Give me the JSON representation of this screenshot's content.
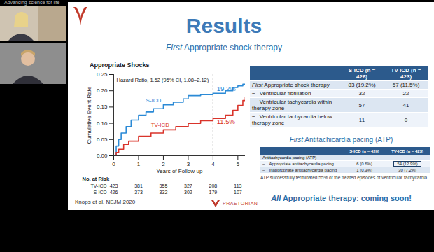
{
  "chart_data": {
    "type": "line",
    "title": "Appropriate Shocks",
    "subtitle": "Hazard Ratio, 1.52 (95% CI, 1.08–2.12)",
    "x_label": "Years of Follow-up",
    "y_label": "Cumulative Event Rate",
    "xlim": [
      0,
      5.3
    ],
    "xticks": [
      0,
      1,
      2,
      3,
      4,
      5
    ],
    "ylim": [
      0,
      0.25
    ],
    "yticks": [
      {
        "value": 0,
        "label": "0.00"
      },
      0.05,
      {
        "value": 0.1,
        "label": "0.10"
      },
      0.15,
      {
        "value": 0.2,
        "label": "0.20"
      },
      0.25
    ],
    "grid": false,
    "series": [
      {
        "name": "S-ICD",
        "color": "#2b8ad6",
        "x": [
          0,
          0.1,
          0.2,
          0.3,
          0.5,
          0.7,
          1,
          1.3,
          1.6,
          2,
          2.4,
          2.8,
          3,
          3.5,
          4,
          4.5,
          4.8,
          5,
          5.2,
          5.3
        ],
        "values": [
          0,
          0.03,
          0.05,
          0.07,
          0.09,
          0.11,
          0.125,
          0.135,
          0.145,
          0.157,
          0.165,
          0.175,
          0.185,
          0.188,
          0.192,
          0.2,
          0.21,
          0.215,
          0.22,
          0.22
        ]
      },
      {
        "name": "TV-ICD",
        "color": "#d9342b",
        "x": [
          0,
          0.1,
          0.2,
          0.4,
          0.6,
          1,
          1.5,
          2,
          2.5,
          3,
          3.5,
          4,
          4.5,
          4.8,
          5,
          5.2,
          5.3
        ],
        "values": [
          0,
          0.01,
          0.02,
          0.035,
          0.045,
          0.06,
          0.07,
          0.08,
          0.09,
          0.1,
          0.108,
          0.115,
          0.125,
          0.14,
          0.155,
          0.17,
          0.18
        ]
      }
    ],
    "annotations": [
      {
        "text": "S-ICD",
        "x": 1.3,
        "y": 0.17,
        "series": "S-ICD"
      },
      {
        "text": "TV-ICD",
        "x": 1.5,
        "y": 0.095,
        "series": "TV-ICD"
      },
      {
        "text": "19.2%",
        "x": 4.15,
        "y": 0.205,
        "series": "S-ICD"
      },
      {
        "text": "11.5%",
        "x": 4.15,
        "y": 0.105,
        "series": "TV-ICD"
      }
    ],
    "vline": {
      "x": 4,
      "line_style": "dashed"
    },
    "at_risk": {
      "label": "No. at Risk",
      "x": [
        0,
        1,
        2,
        3,
        4,
        5
      ],
      "rows": [
        {
          "name": "TV-ICD",
          "values": [
            423,
            381,
            355,
            327,
            208,
            113
          ]
        },
        {
          "name": "S-ICD",
          "values": [
            426,
            373,
            332,
            302,
            179,
            107
          ]
        }
      ]
    }
  },
  "slide": {
    "banner": "Advancing science for life",
    "title": "Results",
    "heading": {
      "emphasis": "First",
      "text": "Appropriate shock therapy"
    },
    "shock_table": {
      "header": [
        null,
        "S-ICD (n = 426)",
        "TV-ICD (n = 423)"
      ],
      "rows": [
        [
          {
            "emphasis": "First",
            "text": "Appropriate shock therapy"
          },
          "83 (19.2%)",
          "57 (11.5%)"
        ],
        [
          {
            "bullet": "−",
            "text": "Ventricular fibrillation"
          },
          "32",
          "22"
        ],
        [
          {
            "bullet": "−",
            "text": "Ventricular tachycardia within therapy zone"
          },
          "57",
          "41"
        ],
        [
          {
            "bullet": "−",
            "text": "Ventricular tachycardia below therapy zone"
          },
          "11",
          "0"
        ]
      ]
    },
    "atp_heading": {
      "emphasis": "First",
      "text": "Antitachicardia pacing (ATP)"
    },
    "atp_table": {
      "header": [
        null,
        "S-ICD (n = 426)",
        "TV-ICD (n = 423)"
      ],
      "section": "Antitachycardia pacing (ATP)",
      "rows": [
        [
          {
            "bullet": "−",
            "text": "Appropriate antitachycardia pacing"
          },
          "6 (0.6%)",
          {
            "text": "54 (12.9%)",
            "boxed": true
          }
        ],
        [
          {
            "bullet": "−",
            "text": "Inappropriate antitachycardia pacing"
          },
          "1 (0.3%)",
          "30 (7.2%)"
        ]
      ]
    },
    "atp_note": "ATP successfully terminated 55% of the treated episodes of ventricular tachycardia",
    "footer_note": {
      "emphasis": "All",
      "text": "Appropriate therapy: coming soon!"
    },
    "citation": "Knops et al. NEJM 2020",
    "logo_text": "PRAETORIAN"
  }
}
